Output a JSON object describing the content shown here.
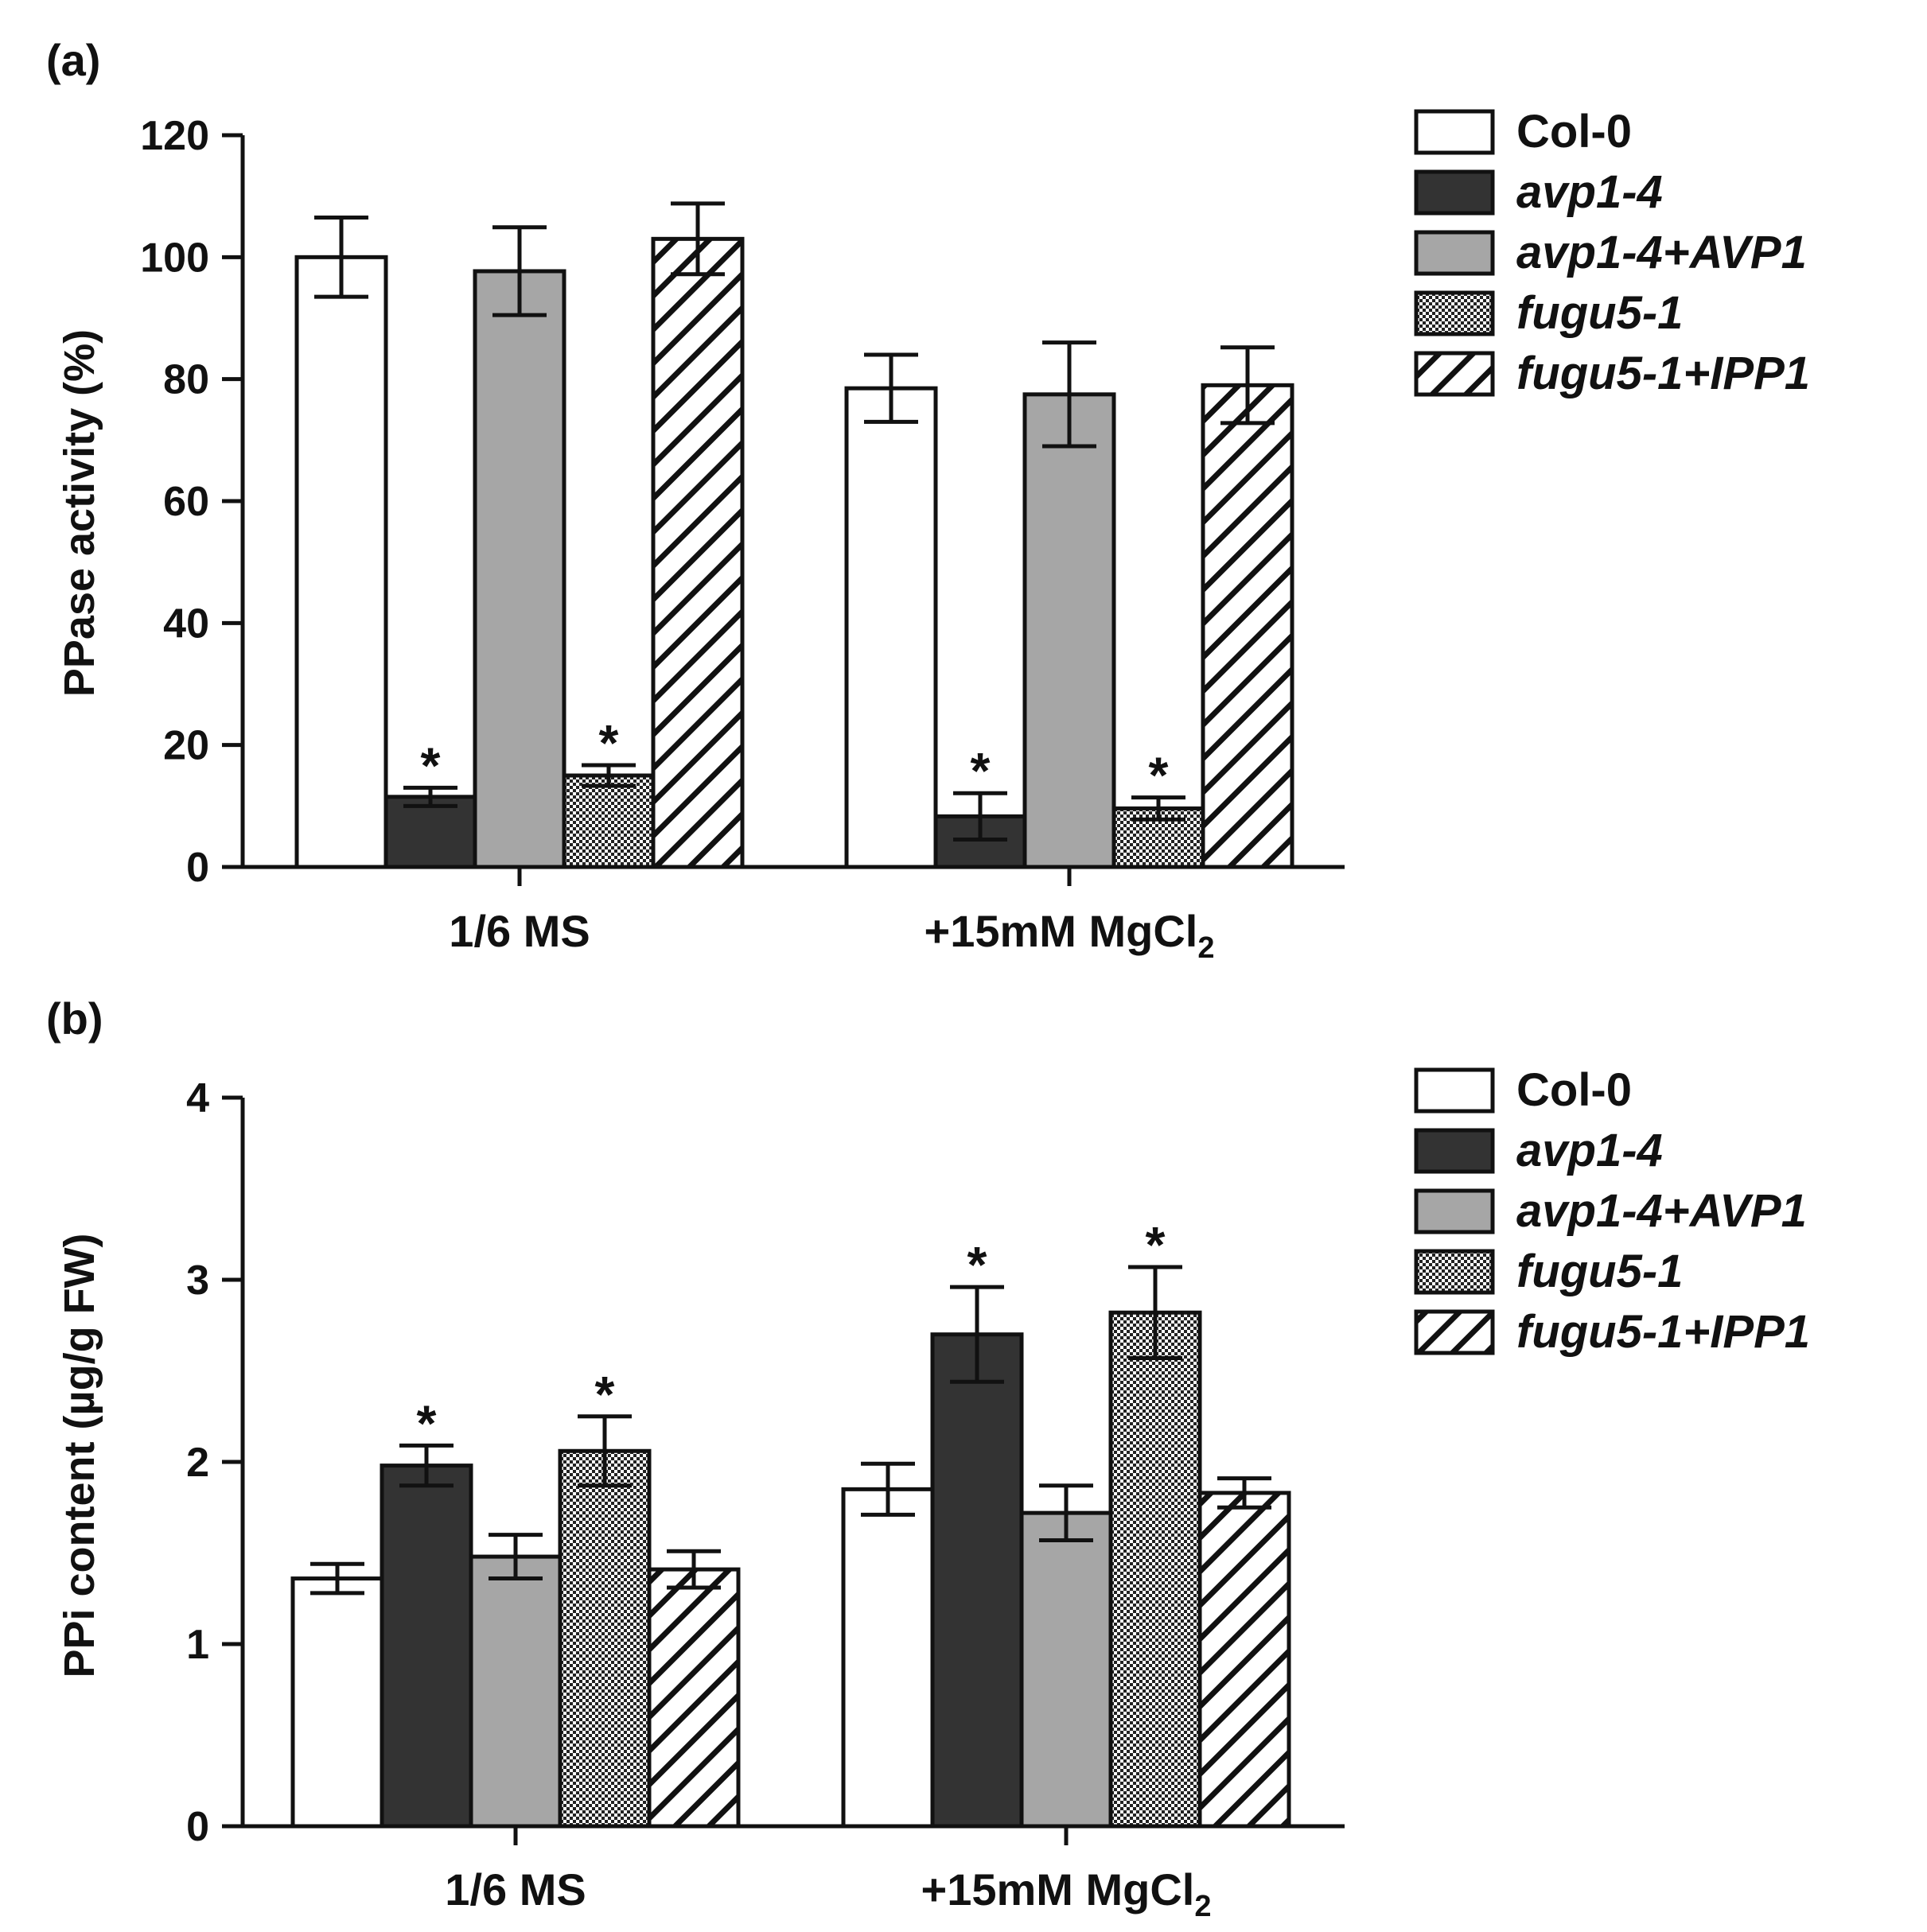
{
  "colors": {
    "Col-0": "#ffffff",
    "avp1-4": "#333333",
    "avp1-4+AVP1": "#a6a6a6",
    "stroke": "#111111"
  },
  "legend": [
    {
      "key": "Col-0",
      "label": "Col-0",
      "pattern": "white",
      "italic": false
    },
    {
      "key": "avp1-4",
      "label": "avp1-4",
      "pattern": "dark",
      "italic": true
    },
    {
      "key": "avp1-4+AVP1",
      "label": "avp1-4+AVP1",
      "pattern": "gray",
      "italic": true
    },
    {
      "key": "fugu5-1",
      "label": "fugu5-1",
      "pattern": "checker",
      "italic": true
    },
    {
      "key": "fugu5-1+IPP1",
      "label": "fugu5-1+IPP1",
      "pattern": "hatch",
      "italic": true
    }
  ],
  "chart_data": [
    {
      "panel": "(a)",
      "type": "bar",
      "ylabel": "PPase activity (%)",
      "ylim": [
        0,
        120
      ],
      "yticks": [
        0,
        20,
        40,
        60,
        80,
        100,
        120
      ],
      "categories": [
        "1/6 MS",
        "+15mM MgCl2"
      ],
      "category_labels": [
        {
          "text": "1/6 MS",
          "sub": ""
        },
        {
          "text": "+15mM MgCl",
          "sub": "2"
        }
      ],
      "series": [
        {
          "name": "Col-0",
          "values": [
            100,
            78.5
          ],
          "errors": [
            6.5,
            5.5
          ],
          "significant": [
            false,
            false
          ]
        },
        {
          "name": "avp1-4",
          "values": [
            11.5,
            8.3
          ],
          "errors": [
            1.5,
            3.8
          ],
          "significant": [
            true,
            true
          ]
        },
        {
          "name": "avp1-4+AVP1",
          "values": [
            97.7,
            77.5
          ],
          "errors": [
            7.2,
            8.5
          ],
          "significant": [
            false,
            false
          ]
        },
        {
          "name": "fugu5-1",
          "values": [
            15,
            9.6
          ],
          "errors": [
            1.7,
            1.8
          ],
          "significant": [
            true,
            true
          ]
        },
        {
          "name": "fugu5-1+IPP1",
          "values": [
            103,
            79
          ],
          "errors": [
            5.8,
            6.2
          ],
          "significant": [
            false,
            false
          ]
        }
      ]
    },
    {
      "panel": "(b)",
      "type": "bar",
      "ylabel": "PPi content (µg/g FW)",
      "ylim": [
        0,
        4
      ],
      "yticks": [
        0,
        1,
        2,
        3,
        4
      ],
      "categories": [
        "1/6 MS",
        "+15mM MgCl2"
      ],
      "category_labels": [
        {
          "text": "1/6 MS",
          "sub": ""
        },
        {
          "text": "+15mM MgCl",
          "sub": "2"
        }
      ],
      "series": [
        {
          "name": "Col-0",
          "values": [
            1.36,
            1.85
          ],
          "errors": [
            0.08,
            0.14
          ],
          "significant": [
            false,
            false
          ]
        },
        {
          "name": "avp1-4",
          "values": [
            1.98,
            2.7
          ],
          "errors": [
            0.11,
            0.26
          ],
          "significant": [
            true,
            true
          ]
        },
        {
          "name": "avp1-4+AVP1",
          "values": [
            1.48,
            1.72
          ],
          "errors": [
            0.12,
            0.15
          ],
          "significant": [
            false,
            false
          ]
        },
        {
          "name": "fugu5-1",
          "values": [
            2.06,
            2.82
          ],
          "errors": [
            0.19,
            0.25
          ],
          "significant": [
            true,
            true
          ]
        },
        {
          "name": "fugu5-1+IPP1",
          "values": [
            1.41,
            1.83
          ],
          "errors": [
            0.1,
            0.08
          ],
          "significant": [
            false,
            false
          ]
        }
      ]
    }
  ]
}
